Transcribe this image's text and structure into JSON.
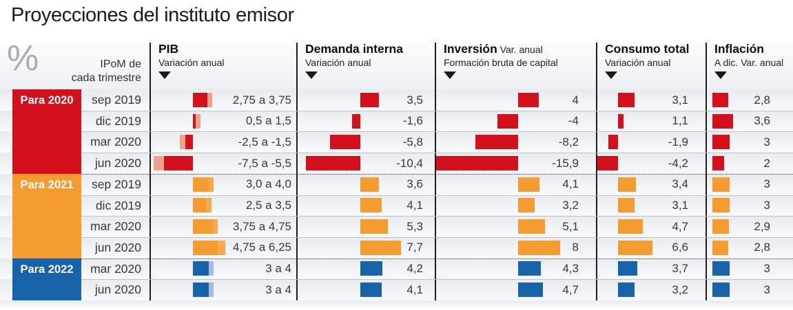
{
  "title": "Proyecciones del instituto emisor",
  "unit_symbol": "%",
  "row_axis_label": {
    "line1": "IPoM de",
    "line2": "cada trimestre"
  },
  "columns": [
    {
      "key": "pib",
      "title": "PIB",
      "suffix": "",
      "sub": "Variación anual"
    },
    {
      "key": "demanda",
      "title": "Demanda interna",
      "suffix": "",
      "sub": "Variación anual"
    },
    {
      "key": "inversion",
      "title": "Inversión",
      "suffix": "Var. anual",
      "sub": "Formación bruta de capital"
    },
    {
      "key": "consumo",
      "title": "Consumo total",
      "suffix": "",
      "sub": "Variación anual"
    },
    {
      "key": "inflacion",
      "title": "Inflación",
      "suffix": "",
      "sub": "A dic. Var. anual"
    }
  ],
  "colors": {
    "red_dark": "#d3101c",
    "red_light": "#eda28e",
    "orange_dark": "#f59c31",
    "orange_light": "#f6a94e",
    "blue_dark": "#1763a9",
    "blue_light": "#a9bade",
    "label_text": "#ffffff"
  },
  "chart_data": {
    "type": "bar",
    "orientation": "horizontal",
    "title": "Proyecciones del instituto emisor",
    "unit": "%",
    "metrics": [
      "PIB",
      "Demanda interna",
      "Inversión",
      "Consumo total",
      "Inflación"
    ],
    "groups": [
      {
        "label": "Para 2020",
        "color_key": "red",
        "rows": [
          {
            "date": "sep 2019",
            "pib": {
              "range": [
                2.75,
                3.75
              ],
              "label": "2,75 a 3,75"
            },
            "demanda": {
              "value": 3.5,
              "label": "3,5"
            },
            "inversion": {
              "value": 4,
              "label": "4"
            },
            "consumo": {
              "value": 3.1,
              "label": "3,1"
            },
            "inflacion": {
              "value": 2.8,
              "label": "2,8"
            }
          },
          {
            "date": "dic 2019",
            "pib": {
              "range": [
                0.5,
                1.5
              ],
              "label": "0,5 a 1,5"
            },
            "demanda": {
              "value": -1.6,
              "label": "-1,6"
            },
            "inversion": {
              "value": -4,
              "label": "-4"
            },
            "consumo": {
              "value": 1.1,
              "label": "1,1"
            },
            "inflacion": {
              "value": 3.6,
              "label": "3,6"
            }
          },
          {
            "date": "mar 2020",
            "pib": {
              "range": [
                -2.5,
                -1.5
              ],
              "label": "-2,5 a -1,5"
            },
            "demanda": {
              "value": -5.8,
              "label": "-5,8"
            },
            "inversion": {
              "value": -8.2,
              "label": "-8,2"
            },
            "consumo": {
              "value": -1.9,
              "label": "-1,9"
            },
            "inflacion": {
              "value": 3,
              "label": "3"
            }
          },
          {
            "date": "jun 2020",
            "pib": {
              "range": [
                -7.5,
                -5.5
              ],
              "label": "-7,5 a -5,5"
            },
            "demanda": {
              "value": -10.4,
              "label": "-10,4"
            },
            "inversion": {
              "value": -15.9,
              "label": "-15,9"
            },
            "consumo": {
              "value": -4.2,
              "label": "-4,2"
            },
            "inflacion": {
              "value": 2,
              "label": "2"
            }
          }
        ]
      },
      {
        "label": "Para 2021",
        "color_key": "orange",
        "rows": [
          {
            "date": "sep 2019",
            "pib": {
              "range": [
                3.0,
                4.0
              ],
              "label": "3,0 a 4,0"
            },
            "demanda": {
              "value": 3.6,
              "label": "3,6"
            },
            "inversion": {
              "value": 4.1,
              "label": "4,1"
            },
            "consumo": {
              "value": 3.4,
              "label": "3,4"
            },
            "inflacion": {
              "value": 3,
              "label": "3"
            }
          },
          {
            "date": "dic 2019",
            "pib": {
              "range": [
                2.5,
                3.5
              ],
              "label": "2,5 a 3,5"
            },
            "demanda": {
              "value": 4.1,
              "label": "4,1"
            },
            "inversion": {
              "value": 3.2,
              "label": "3,2"
            },
            "consumo": {
              "value": 3.1,
              "label": "3,1"
            },
            "inflacion": {
              "value": 3,
              "label": "3"
            }
          },
          {
            "date": "mar 2020",
            "pib": {
              "range": [
                3.75,
                4.75
              ],
              "label": "3,75 a 4,75"
            },
            "demanda": {
              "value": 5.3,
              "label": "5,3"
            },
            "inversion": {
              "value": 5.1,
              "label": "5,1"
            },
            "consumo": {
              "value": 4.7,
              "label": "4,7"
            },
            "inflacion": {
              "value": 2.9,
              "label": "2,9"
            }
          },
          {
            "date": "jun 2020",
            "pib": {
              "range": [
                4.75,
                6.25
              ],
              "label": "4,75 a 6,25"
            },
            "demanda": {
              "value": 7.7,
              "label": "7,7"
            },
            "inversion": {
              "value": 8,
              "label": "8"
            },
            "consumo": {
              "value": 6.6,
              "label": "6,6"
            },
            "inflacion": {
              "value": 2.8,
              "label": "2,8"
            }
          }
        ]
      },
      {
        "label": "Para 2022",
        "color_key": "blue",
        "rows": [
          {
            "date": "mar 2020",
            "pib": {
              "range": [
                3,
                4
              ],
              "label": "3 a 4"
            },
            "demanda": {
              "value": 4.2,
              "label": "4,2"
            },
            "inversion": {
              "value": 4.3,
              "label": "4,3"
            },
            "consumo": {
              "value": 3.7,
              "label": "3,7"
            },
            "inflacion": {
              "value": 3,
              "label": "3"
            }
          },
          {
            "date": "jun 2020",
            "pib": {
              "range": [
                3,
                4
              ],
              "label": "3 a 4"
            },
            "demanda": {
              "value": 4.1,
              "label": "4,1"
            },
            "inversion": {
              "value": 4.7,
              "label": "4,7"
            },
            "consumo": {
              "value": 3.2,
              "label": "3,2"
            },
            "inflacion": {
              "value": 3,
              "label": "3"
            }
          }
        ]
      }
    ]
  }
}
